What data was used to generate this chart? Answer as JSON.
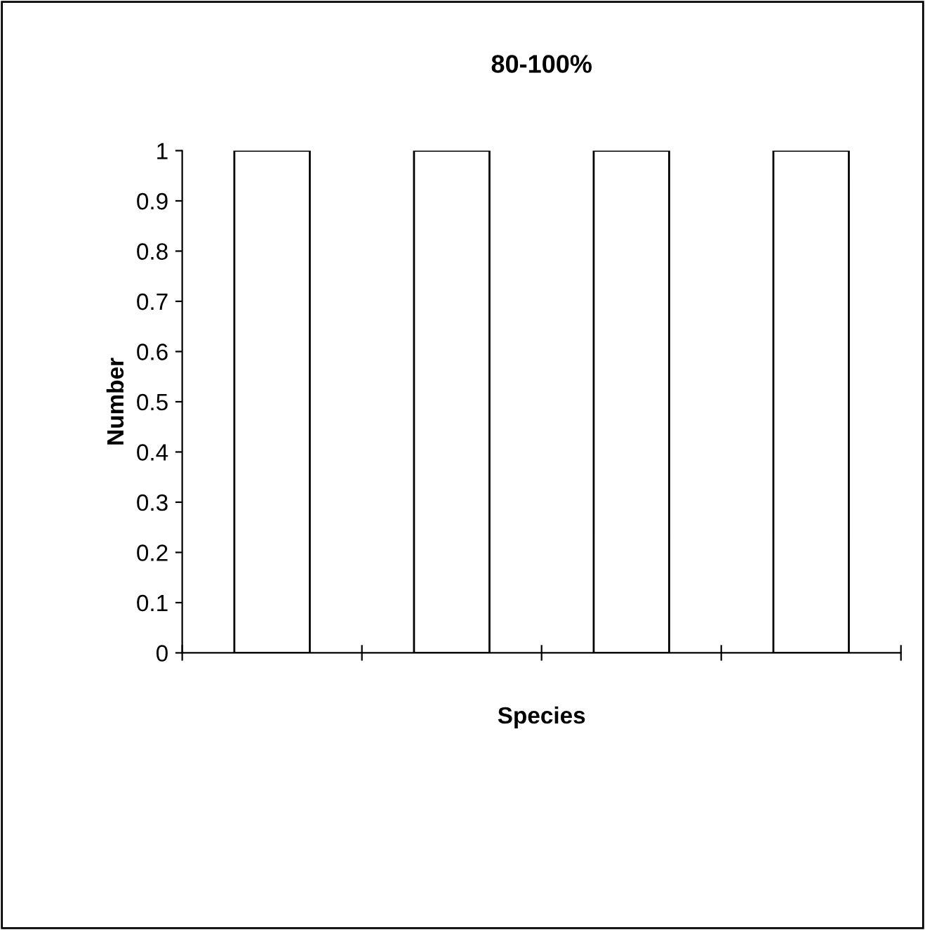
{
  "chart_data": {
    "type": "bar",
    "title": "80-100%",
    "xlabel": "Species",
    "ylabel": "Number",
    "categories": [
      null,
      null,
      null,
      null
    ],
    "values": [
      1,
      1,
      1,
      1
    ],
    "color": "#ffffff",
    "ylim": [
      0,
      1
    ],
    "yticks": [
      0,
      0.1,
      0.2,
      0.3,
      0.4,
      0.5,
      0.6,
      0.7,
      0.8,
      0.9,
      1
    ],
    "grid": false,
    "legend": false
  }
}
